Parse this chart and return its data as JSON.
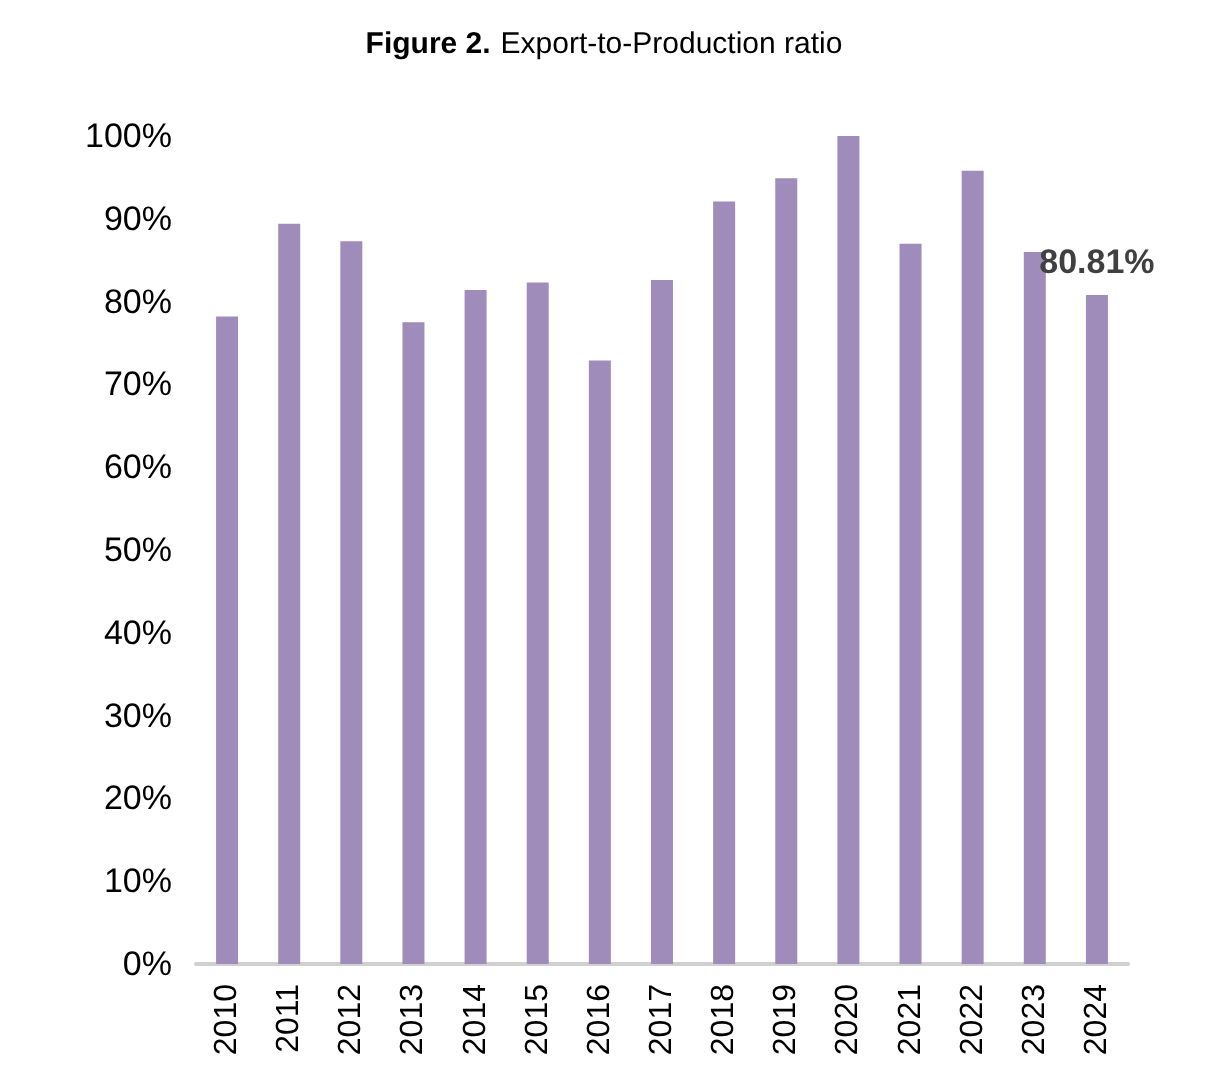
{
  "chart_data": {
    "type": "bar",
    "title": "Figure 2. Export-to-Production ratio",
    "categories": [
      "2010",
      "2011",
      "2012",
      "2013",
      "2014",
      "2015",
      "2016",
      "2017",
      "2018",
      "2019",
      "2020",
      "2021",
      "2022",
      "2023",
      "2024"
    ],
    "values": [
      78.2,
      89.4,
      87.3,
      77.5,
      81.4,
      82.3,
      72.9,
      82.6,
      92.1,
      94.9,
      100,
      87.0,
      95.8,
      86.0,
      80.81
    ],
    "value_labels": [
      null,
      null,
      null,
      null,
      null,
      null,
      null,
      null,
      null,
      null,
      null,
      null,
      null,
      null,
      "80.81%"
    ],
    "color": "#a08cba",
    "ylim": [
      0,
      100
    ],
    "yticks": [
      {
        "value": 0,
        "label": "0%"
      },
      {
        "value": 10,
        "label": "10%"
      },
      {
        "value": 20,
        "label": "20%"
      },
      {
        "value": 30,
        "label": "30%"
      },
      {
        "value": 40,
        "label": "40%"
      },
      {
        "value": 50,
        "label": "50%"
      },
      {
        "value": 60,
        "label": "60%"
      },
      {
        "value": 70,
        "label": "70%"
      },
      {
        "value": 80,
        "label": "80%"
      },
      {
        "value": 90,
        "label": "90%"
      },
      {
        "value": 100,
        "label": "100%"
      }
    ],
    "grid": false
  }
}
